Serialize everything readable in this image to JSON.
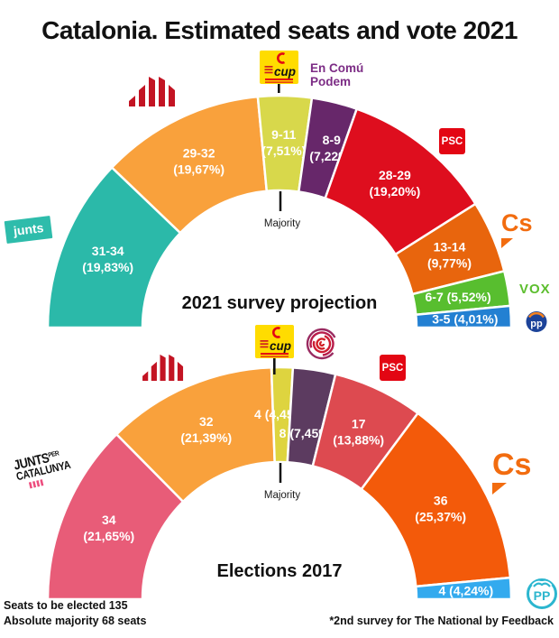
{
  "title": "Catalonia. Estimated seats and vote 2021",
  "footer": {
    "left_line1": "Seats to be elected 135",
    "left_line2": "Absolute majority 68 seats",
    "right_note": "*2nd survey for The National by Feedback"
  },
  "logos": {
    "junts": "junts",
    "en_comu_podem_line1": "En Comú",
    "en_comu_podem_line2": "Podem",
    "psc": "PSC",
    "cs": "Cs",
    "vox": "VOX",
    "cup": "cup",
    "pp_new": "pp",
    "pp_old": "PP",
    "jxcat_word1": "JUNTS",
    "jxcat_word1b": "PER",
    "jxcat_word2": "CATALUNYA"
  },
  "chart_data": [
    {
      "type": "hemicycle",
      "title": "2021 survey projection",
      "majority_label": "Majority",
      "total_seats": 135,
      "segments": [
        {
          "party": "Junts",
          "seats": "31-34",
          "pct": "(19,83%)",
          "value": 32.5,
          "color": "#2BB9A9"
        },
        {
          "party": "ERC",
          "seats": "29-32",
          "pct": "(19,67%)",
          "value": 30.5,
          "color": "#F9A13C"
        },
        {
          "party": "CUP",
          "seats": "9-11",
          "pct": "(7,51%)",
          "value": 10,
          "color": "#D8D84B"
        },
        {
          "party": "En Comú Podem",
          "seats": "8-9",
          "pct": "(7,22%)",
          "value": 8.5,
          "color": "#67276A"
        },
        {
          "party": "PSC",
          "seats": "28-29",
          "pct": "(19,20%)",
          "value": 28.5,
          "color": "#DE0E1E"
        },
        {
          "party": "Cs",
          "seats": "13-14",
          "pct": "(9,77%)",
          "value": 13.5,
          "color": "#E8650D"
        },
        {
          "party": "VOX",
          "seats": "6-7",
          "pct": "(5,52%)",
          "value": 6.5,
          "color": "#58BE2F"
        },
        {
          "party": "PP",
          "seats": "3-5",
          "pct": "(4,01%)",
          "value": 4,
          "color": "#2380D2"
        }
      ]
    },
    {
      "type": "hemicycle",
      "title": "Elections 2017",
      "majority_label": "Majority",
      "total_seats": 135,
      "segments": [
        {
          "party": "Junts per Catalunya",
          "seats": "34",
          "pct": "(21,65%)",
          "value": 34,
          "color": "#E85C78"
        },
        {
          "party": "ERC",
          "seats": "32",
          "pct": "(21,39%)",
          "value": 32,
          "color": "#F9A13C"
        },
        {
          "party": "CUP",
          "seats": "4",
          "pct": "(4,45%)",
          "value": 4,
          "color": "#DED43F"
        },
        {
          "party": "Podem",
          "seats": "8",
          "pct": "(7,45%)",
          "value": 8,
          "color": "#5C3B60"
        },
        {
          "party": "PSC",
          "seats": "17",
          "pct": "(13,88%)",
          "value": 17,
          "color": "#DD4A50"
        },
        {
          "party": "Cs",
          "seats": "36",
          "pct": "(25,37%)",
          "value": 36,
          "color": "#F35A0A"
        },
        {
          "party": "PP",
          "seats": "4",
          "pct": "(4,24%)",
          "value": 4,
          "color": "#33AAEE"
        }
      ]
    }
  ]
}
